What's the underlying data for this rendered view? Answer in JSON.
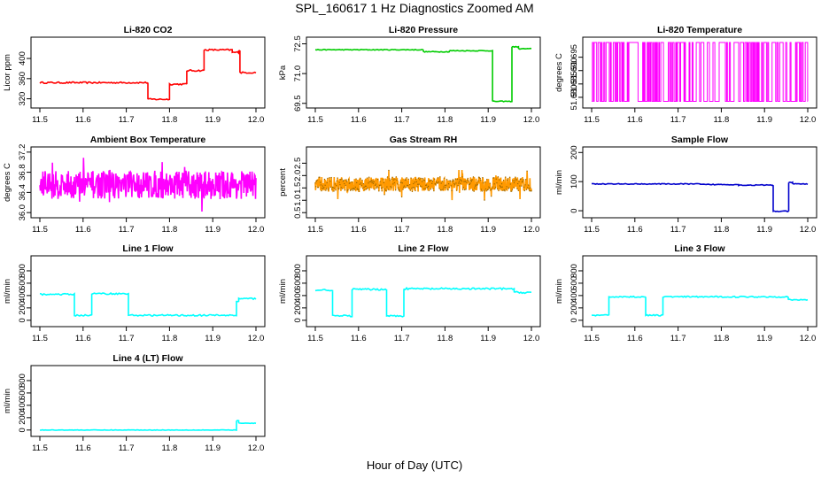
{
  "page": {
    "title": "SPL_160617  1 Hz Diagnostics Zoomed AM",
    "xlabel": "Hour of Day (UTC)"
  },
  "chart_data": [
    {
      "type": "line",
      "title": "Li-820 CO2",
      "ylabel": "Licor ppm",
      "color": "#ff0000",
      "xlim": [
        11.5,
        12.0
      ],
      "ylim": [
        307,
        437
      ],
      "yticks": [
        320,
        360,
        400
      ],
      "yticklabels": [
        "320",
        "360",
        "400"
      ],
      "x": [
        11.5,
        11.75,
        11.75,
        11.8,
        11.8,
        11.84,
        11.84,
        11.88,
        11.88,
        11.945,
        11.945,
        11.96,
        11.96,
        11.963,
        11.963,
        12.0
      ],
      "y": [
        352,
        352,
        319,
        319,
        349,
        349,
        376,
        376,
        417,
        417,
        412,
        412,
        416,
        416,
        372,
        372
      ],
      "noise": 1.5
    },
    {
      "type": "line",
      "title": "Li-820 Pressure",
      "ylabel": "kPa",
      "color": "#00cc00",
      "xlim": [
        11.5,
        12.0
      ],
      "ylim": [
        69.4,
        72.7
      ],
      "yticks": [
        69.5,
        71.0,
        72.5
      ],
      "yticklabels": [
        "69.5",
        "71.0",
        "72.5"
      ],
      "x": [
        11.5,
        11.75,
        11.75,
        11.81,
        11.81,
        11.91,
        11.91,
        11.955,
        11.955,
        11.97,
        11.97,
        12.0
      ],
      "y": [
        72.2,
        72.2,
        72.1,
        72.1,
        72.15,
        72.15,
        69.6,
        69.6,
        72.35,
        72.35,
        72.25,
        72.25
      ],
      "noise": 0.02
    },
    {
      "type": "line",
      "title": "Li-820 Temperature",
      "ylabel": "degrees C",
      "color": "#ff00ff",
      "xlim": [
        11.5,
        12.0
      ],
      "ylim": [
        51.677,
        51.7015
      ],
      "yticks": [
        51.68,
        51.685,
        51.69,
        51.695
      ],
      "yticklabels": [
        "51.680",
        "51.685",
        "51.690",
        "51.695"
      ],
      "quantized": [
        51.6785,
        51.7005
      ],
      "n": 220
    },
    {
      "type": "line",
      "title": "Ambient Box Temperature",
      "ylabel": "degrees C",
      "color": "#ff00ff",
      "xlim": [
        11.5,
        12.0
      ],
      "ylim": [
        35.95,
        37.25
      ],
      "yticks": [
        36.0,
        36.4,
        36.8,
        37.2
      ],
      "yticklabels": [
        "36.0",
        "36.4",
        "36.8",
        "37.2"
      ],
      "mean": 36.55,
      "spread": 0.28,
      "n": 500
    },
    {
      "type": "line",
      "title": "Gas Stream RH",
      "ylabel": "percent",
      "color": "#ff9900",
      "xlim": [
        11.5,
        12.0
      ],
      "ylim": [
        0.4,
        3.05
      ],
      "yticks": [
        0.5,
        1.0,
        1.5,
        2.0,
        2.5
      ],
      "yticklabels": [
        "0.5",
        "1.0",
        "1.5",
        "2.0",
        "2.5"
      ],
      "mean": 1.65,
      "spread": 0.3,
      "n": 700,
      "point_color": "#996600"
    },
    {
      "type": "line",
      "title": "Sample Flow",
      "ylabel": "ml/min",
      "color": "#0000cc",
      "xlim": [
        11.5,
        12.0
      ],
      "ylim": [
        -15,
        210
      ],
      "yticks": [
        0,
        100,
        200
      ],
      "yticklabels": [
        "0",
        "100",
        "200"
      ],
      "x": [
        11.5,
        11.75,
        11.75,
        11.84,
        11.84,
        11.92,
        11.92,
        11.956,
        11.956,
        11.965,
        11.965,
        12.0
      ],
      "y": [
        92,
        92,
        90,
        90,
        88,
        88,
        -2,
        -2,
        97,
        97,
        92,
        92
      ],
      "noise": 1.5
    },
    {
      "type": "line",
      "title": "Line 1 Flow",
      "ylabel": "ml/min",
      "color": "#00ffff",
      "xlim": [
        11.5,
        12.0
      ],
      "ylim": [
        -60,
        1000
      ],
      "yticks": [
        0,
        200,
        400,
        600,
        800
      ],
      "yticklabels": [
        "0",
        "200",
        "400",
        "600",
        "800"
      ],
      "x": [
        11.5,
        11.58,
        11.58,
        11.62,
        11.62,
        11.705,
        11.705,
        11.955,
        11.955,
        11.96,
        11.96,
        12.0
      ],
      "y": [
        420,
        420,
        80,
        80,
        430,
        430,
        80,
        80,
        300,
        300,
        350,
        350
      ],
      "noise": 12
    },
    {
      "type": "line",
      "title": "Line 2 Flow",
      "ylabel": "ml/min",
      "color": "#00ffff",
      "xlim": [
        11.5,
        12.0
      ],
      "ylim": [
        -60,
        1000
      ],
      "yticks": [
        0,
        200,
        400,
        600,
        800
      ],
      "yticklabels": [
        "0",
        "200",
        "400",
        "600",
        "800"
      ],
      "x": [
        11.5,
        11.54,
        11.54,
        11.585,
        11.585,
        11.665,
        11.665,
        11.705,
        11.705,
        11.96,
        11.96,
        12.0
      ],
      "y": [
        490,
        490,
        70,
        70,
        500,
        500,
        70,
        70,
        510,
        510,
        450,
        450
      ],
      "noise": 14
    },
    {
      "type": "line",
      "title": "Line 3 Flow",
      "ylabel": "ml/min",
      "color": "#00ffff",
      "xlim": [
        11.5,
        12.0
      ],
      "ylim": [
        -60,
        1000
      ],
      "yticks": [
        0,
        200,
        400,
        600,
        800
      ],
      "yticklabels": [
        "0",
        "200",
        "400",
        "600",
        "800"
      ],
      "x": [
        11.5,
        11.54,
        11.54,
        11.625,
        11.625,
        11.665,
        11.665,
        11.955,
        11.955,
        12.0
      ],
      "y": [
        80,
        80,
        380,
        380,
        80,
        80,
        380,
        380,
        330,
        330
      ],
      "noise": 10
    },
    {
      "type": "line",
      "title": "Line 4 (LT) Flow",
      "ylabel": "ml/min",
      "color": "#00ffff",
      "xlim": [
        11.5,
        12.0
      ],
      "ylim": [
        -60,
        1000
      ],
      "yticks": [
        0,
        200,
        400,
        600,
        800
      ],
      "yticklabels": [
        "0",
        "200",
        "400",
        "600",
        "800"
      ],
      "x": [
        11.5,
        11.955,
        11.955,
        11.96,
        11.96,
        12.0
      ],
      "y": [
        0,
        0,
        150,
        150,
        110,
        110
      ],
      "noise": 4
    }
  ],
  "x_axis": {
    "ticks": [
      11.5,
      11.6,
      11.7,
      11.8,
      11.9,
      12.0
    ],
    "ticklabels": [
      "11.5",
      "11.6",
      "11.7",
      "11.8",
      "11.9",
      "12.0"
    ]
  }
}
